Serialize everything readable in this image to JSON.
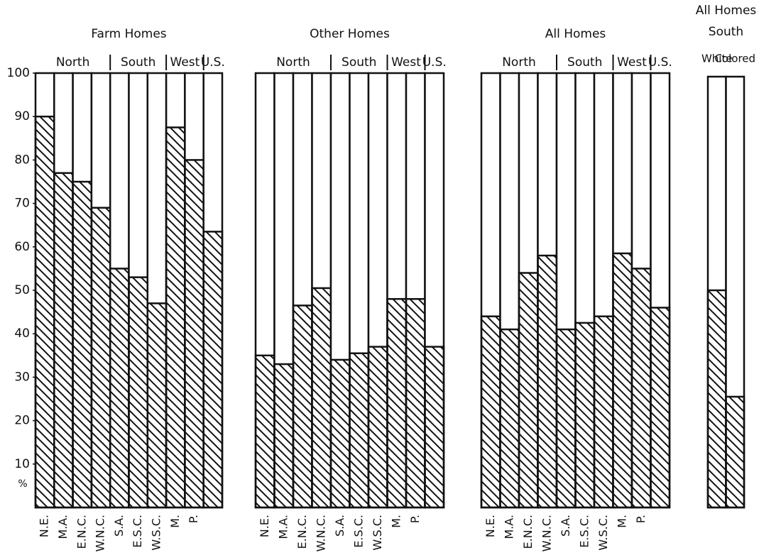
{
  "chart_data": [
    {
      "type": "bar",
      "title": "Farm Homes",
      "groups": [
        "North",
        "South",
        "West",
        "U.S."
      ],
      "categories": [
        "N.E.",
        "M.A.",
        "E.N.C.",
        "W.N.C.",
        "S.A.",
        "E.S.C.",
        "W.S.C.",
        "M.",
        "P.",
        null
      ],
      "values": [
        90,
        77,
        75,
        69,
        55,
        53,
        47,
        87.5,
        80,
        63.5
      ],
      "ylim": [
        0,
        100
      ],
      "yticks": [
        10,
        20,
        30,
        40,
        50,
        60,
        70,
        80,
        90,
        100
      ],
      "ylabel": "%"
    },
    {
      "type": "bar",
      "title": "Other Homes",
      "groups": [
        "North",
        "South",
        "West",
        "U.S."
      ],
      "categories": [
        "N.E.",
        "M.A.",
        "E.N.C.",
        "W.N.C.",
        "S.A.",
        "E.S.C.",
        "W.S.C.",
        "M.",
        "P.",
        null
      ],
      "values": [
        35,
        33,
        46.5,
        50.5,
        34,
        35.5,
        37,
        48,
        48,
        37
      ],
      "ylim": [
        0,
        100
      ]
    },
    {
      "type": "bar",
      "title": "All Homes",
      "groups": [
        "North",
        "South",
        "West",
        "U.S."
      ],
      "categories": [
        "N.E.",
        "M.A.",
        "E.N.C.",
        "W.N.C.",
        "S.A.",
        "E.S.C.",
        "W.S.C.",
        "M.",
        "P.",
        null
      ],
      "values": [
        44,
        41,
        54,
        58,
        41,
        42.5,
        44,
        58.5,
        55,
        46
      ],
      "ylim": [
        0,
        100
      ]
    },
    {
      "type": "bar",
      "title": "All Homes",
      "subtitle": "South",
      "categories": [
        "White",
        "Colored"
      ],
      "values": [
        50,
        25.5
      ],
      "ylim": [
        0,
        100
      ]
    }
  ]
}
